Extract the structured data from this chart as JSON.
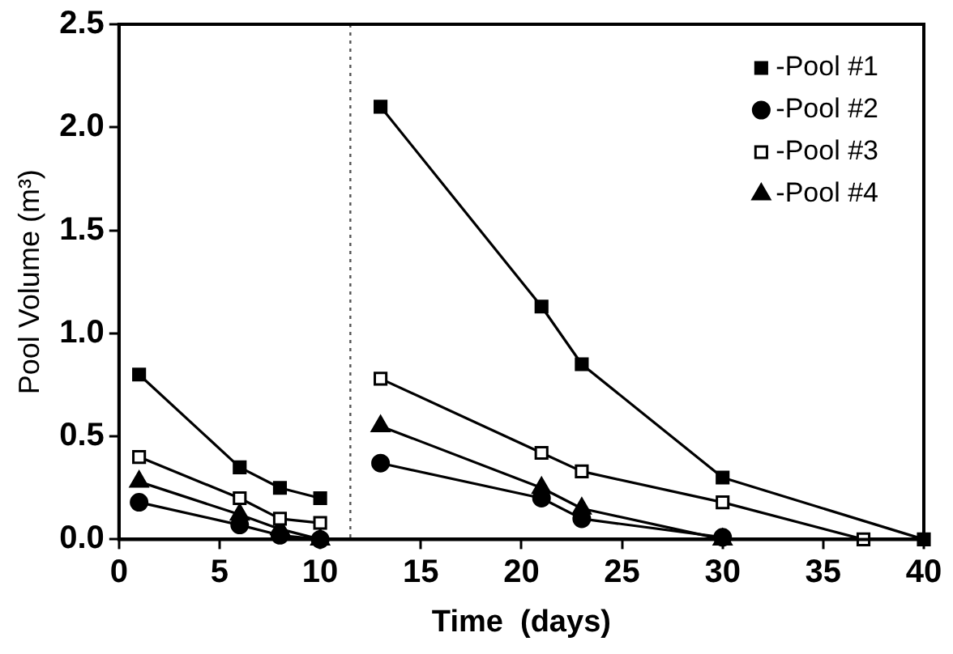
{
  "chart_data": {
    "type": "line",
    "xlabel": "Time  (days)",
    "ylabel": "Pool Volume (m³)",
    "xlim": [
      0,
      40
    ],
    "xticks": [
      0,
      5,
      10,
      15,
      20,
      25,
      30,
      35,
      40
    ],
    "ylim": [
      0,
      2.5
    ],
    "yticks": [
      {
        "value": 0,
        "label": "0.0"
      },
      0.5,
      {
        "value": 1,
        "label": "1.0"
      },
      1.5,
      {
        "value": 2,
        "label": "2.0"
      },
      2.5
    ],
    "grid": false,
    "legend": "top right",
    "line_style": "solid",
    "ref_lines": [
      {
        "axis": "x",
        "value": 11.5,
        "line_style": "dotted",
        "color": "#555555"
      }
    ],
    "series": [
      {
        "name": "-Pool #1",
        "color": "#000000",
        "marker": "square",
        "x": [
          1,
          6,
          8,
          10,
          11.5,
          13,
          21,
          23,
          30,
          40
        ],
        "values": [
          0.8,
          0.35,
          0.25,
          0.2,
          null,
          2.1,
          1.13,
          0.85,
          0.3,
          0
        ]
      },
      {
        "name": "-Pool #2",
        "color": "#000000",
        "marker": "circle",
        "x": [
          1,
          6,
          8,
          10,
          11.5,
          13,
          21,
          23,
          30
        ],
        "values": [
          0.18,
          0.07,
          0.02,
          0,
          null,
          0.37,
          0.2,
          0.1,
          0.01
        ]
      },
      {
        "name": "-Pool #3",
        "color": "#000000",
        "marker": "square-open",
        "x": [
          1,
          6,
          8,
          10,
          11.5,
          13,
          21,
          23,
          30,
          37
        ],
        "values": [
          0.4,
          0.2,
          0.1,
          0.08,
          null,
          0.78,
          0.42,
          0.33,
          0.18,
          0
        ]
      },
      {
        "name": "-Pool #4",
        "color": "#000000",
        "marker": "triangle",
        "x": [
          1,
          6,
          8,
          10,
          11.5,
          13,
          21,
          23,
          30
        ],
        "values": [
          0.28,
          0.12,
          0.05,
          0,
          null,
          0.55,
          0.25,
          0.15,
          0
        ]
      }
    ]
  }
}
